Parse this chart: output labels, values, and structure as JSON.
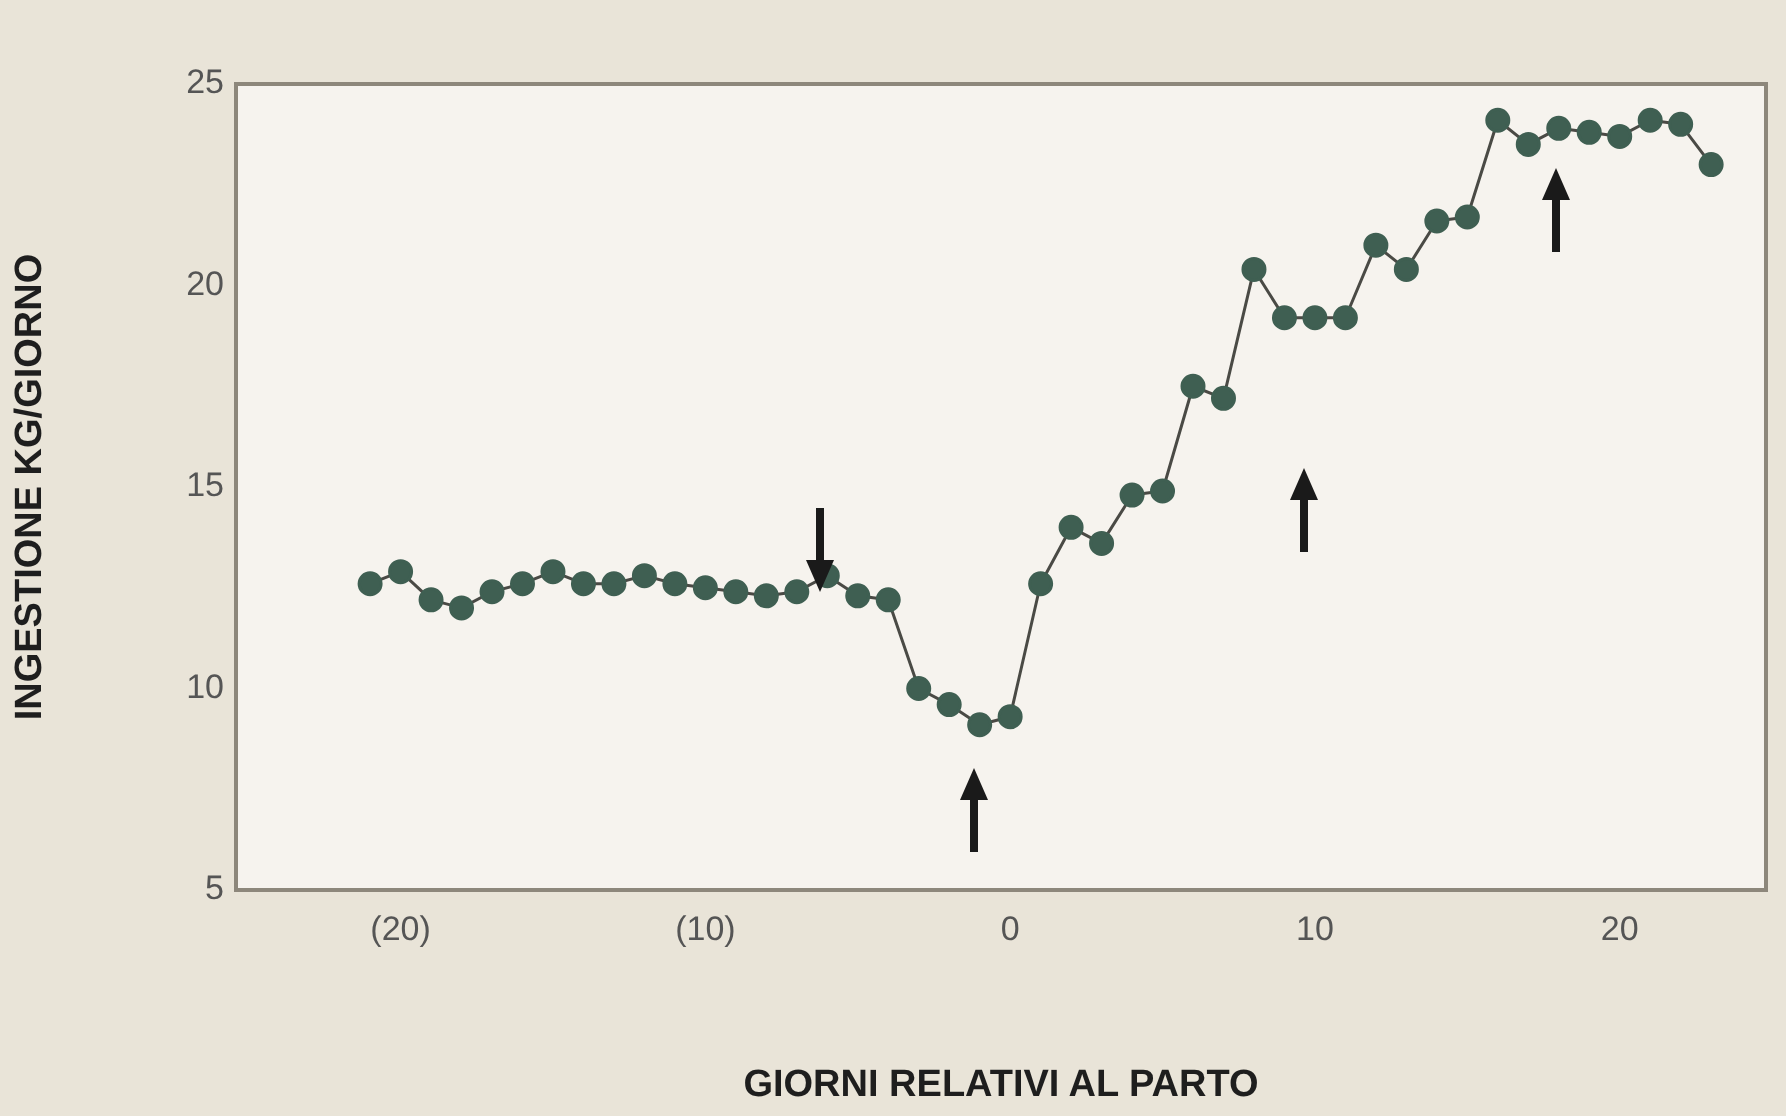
{
  "chart_data": {
    "type": "line",
    "xlabel": "GIORNI RELATIVI AL PARTO",
    "ylabel": "INGESTIONE KG/GIORNO",
    "x": [
      -21,
      -20,
      -19,
      -18,
      -17,
      -16,
      -15,
      -14,
      -13,
      -12,
      -11,
      -10,
      -9,
      -8,
      -7,
      -6,
      -5,
      -4,
      -3,
      -2,
      -1,
      0,
      1,
      2,
      3,
      4,
      5,
      6,
      7,
      8,
      9,
      10,
      11,
      12,
      13,
      14,
      15,
      16,
      17,
      18,
      19,
      20,
      21,
      22,
      23
    ],
    "series": [
      {
        "color": "#3f5f52",
        "values": [
          12.6,
          12.9,
          12.2,
          12.0,
          12.4,
          12.6,
          12.9,
          12.6,
          12.6,
          12.8,
          12.6,
          12.5,
          12.4,
          12.3,
          12.4,
          12.8,
          12.3,
          12.2,
          10.0,
          9.6,
          9.1,
          9.3,
          12.6,
          14.0,
          13.6,
          14.8,
          14.9,
          17.5,
          17.2,
          20.4,
          19.2,
          19.2,
          19.2,
          21.0,
          20.4,
          21.6,
          21.7,
          24.1,
          23.5,
          23.9,
          23.8,
          23.7,
          24.1,
          24.0,
          23.0
        ]
      }
    ],
    "xlim": [
      -25.4,
      24.8
    ],
    "ylim": [
      5,
      25
    ],
    "xticks": [
      {
        "value": -20,
        "label": "(20)"
      },
      {
        "value": -10,
        "label": "(10)"
      },
      0,
      10,
      20
    ],
    "yticks": [
      5,
      10,
      15,
      20,
      25
    ],
    "grid": false,
    "legend": false,
    "marker": "circle",
    "line_style": "solid"
  }
}
